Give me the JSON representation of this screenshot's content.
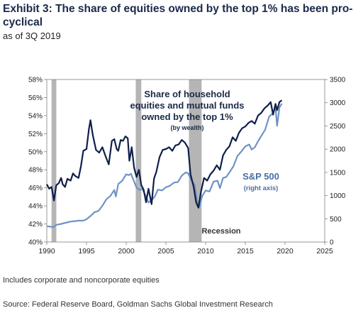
{
  "header": {
    "title": "Exhibit 3: The share of equities owned by the top 1% has been pro-cyclical",
    "subtitle": "as of 3Q 2019"
  },
  "footer": {
    "note": "Includes corporate and noncorporate equities",
    "source": "Source: Federal Reserve Board, Goldman Sachs Global Investment Research"
  },
  "chart_data": {
    "type": "line",
    "title": "",
    "xlabel": "",
    "ylabel": "",
    "xlim": [
      1990,
      2025
    ],
    "ylim": [
      40,
      58
    ],
    "y2lim": [
      0,
      3500
    ],
    "x_ticks": [
      "1990",
      "1995",
      "2000",
      "2005",
      "2010",
      "2015",
      "2020",
      "2025"
    ],
    "y_ticks": [
      "40%",
      "42%",
      "44%",
      "46%",
      "48%",
      "50%",
      "52%",
      "54%",
      "56%",
      "58%"
    ],
    "y2_ticks": [
      "0",
      "500",
      "1000",
      "1500",
      "2000",
      "2500",
      "3000",
      "3500"
    ],
    "annotations": {
      "top1_label_1": "Share of household",
      "top1_label_2": "equities and mutual funds",
      "top1_label_3": "owned by the top 1%",
      "top1_label_4": "(by wealth)",
      "sp_label_1": "S&P 500",
      "sp_label_2": "(right axis)",
      "recession_label": "Recession"
    },
    "recessions": [
      [
        1990.6,
        1991.2
      ],
      [
        2001.2,
        2001.9
      ],
      [
        2007.9,
        2009.5
      ]
    ],
    "colors": {
      "top1": "#0f1f4b",
      "sp500": "#6f93c6",
      "recession": "#b5b5b5",
      "label_dark": "#1b2a4a",
      "label_blue": "#4a6fa5"
    },
    "series": [
      {
        "axis": "left",
        "x": [
          1990.0,
          1990.3,
          1990.6,
          1990.9,
          1991.2,
          1991.5,
          1991.8,
          1992.0,
          1992.3,
          1992.6,
          1993.0,
          1993.3,
          1993.6,
          1994.0,
          1994.3,
          1994.6,
          1995.0,
          1995.3,
          1995.5,
          1995.8,
          1996.2,
          1996.6,
          1997.0,
          1997.4,
          1997.8,
          1998.2,
          1998.5,
          1998.8,
          1999.0,
          1999.3,
          1999.6,
          1999.9,
          2000.2,
          2000.4,
          2000.7,
          2001.0,
          2001.3,
          2001.6,
          2001.9,
          2002.2,
          2002.5,
          2002.8,
          2003.2,
          2003.5,
          2003.8,
          2004.2,
          2004.6,
          2005.0,
          2005.4,
          2005.8,
          2006.2,
          2006.6,
          2007.0,
          2007.4,
          2007.8,
          2008.1,
          2008.5,
          2008.8,
          2009.1,
          2009.4,
          2009.8,
          2010.2,
          2010.6,
          2011.0,
          2011.4,
          2011.8,
          2012.2,
          2012.6,
          2013.0,
          2013.4,
          2013.8,
          2014.2,
          2014.6,
          2015.0,
          2015.4,
          2015.8,
          2016.2,
          2016.6,
          2017.0,
          2017.4,
          2017.8,
          2018.2,
          2018.5,
          2018.8,
          2019.0,
          2019.3,
          2019.6
        ],
        "values": [
          46.4,
          45.9,
          46.1,
          44.6,
          46.3,
          46.5,
          47.1,
          46.4,
          46.1,
          47.0,
          46.8,
          47.6,
          47.3,
          47.1,
          48.4,
          50.1,
          50.3,
          52.5,
          53.5,
          51.8,
          50.2,
          49.9,
          50.5,
          49.5,
          48.6,
          51.2,
          51.4,
          50.3,
          50.1,
          51.3,
          51.2,
          51.7,
          51.5,
          49.0,
          50.5,
          48.2,
          47.2,
          48.0,
          46.3,
          45.8,
          44.4,
          45.9,
          44.2,
          47.0,
          47.8,
          49.4,
          50.2,
          50.3,
          50.5,
          50.1,
          50.7,
          50.8,
          51.3,
          51.0,
          50.4,
          47.5,
          46.1,
          44.4,
          43.8,
          45.5,
          47.1,
          46.8,
          47.5,
          47.9,
          48.5,
          48.0,
          49.6,
          50.2,
          50.6,
          51.6,
          51.2,
          52.1,
          52.6,
          52.8,
          53.2,
          53.4,
          53.1,
          54.0,
          54.3,
          54.8,
          55.1,
          55.5,
          54.1,
          55.3,
          54.6,
          55.5,
          55.7
        ]
      },
      {
        "axis": "right",
        "x": [
          1990.0,
          1990.5,
          1990.8,
          1991.2,
          1991.8,
          1992.5,
          1993.0,
          1993.5,
          1994.0,
          1994.6,
          1995.0,
          1995.5,
          1996.0,
          1996.5,
          1997.0,
          1997.5,
          1998.0,
          1998.5,
          1998.7,
          1999.0,
          1999.5,
          2000.0,
          2000.3,
          2000.6,
          2001.0,
          2001.3,
          2001.7,
          2002.0,
          2002.5,
          2002.8,
          2003.2,
          2003.6,
          2004.0,
          2004.5,
          2005.0,
          2005.5,
          2006.0,
          2006.5,
          2007.0,
          2007.5,
          2007.8,
          2008.2,
          2008.6,
          2008.9,
          2009.2,
          2009.6,
          2010.0,
          2010.5,
          2011.0,
          2011.5,
          2011.8,
          2012.2,
          2012.6,
          2013.0,
          2013.5,
          2014.0,
          2014.5,
          2015.0,
          2015.5,
          2015.8,
          2016.2,
          2016.6,
          2017.0,
          2017.5,
          2018.0,
          2018.5,
          2018.8,
          2019.0,
          2019.3,
          2019.6
        ],
        "values": [
          340,
          330,
          320,
          370,
          390,
          420,
          440,
          450,
          460,
          460,
          490,
          560,
          640,
          670,
          780,
          920,
          990,
          1120,
          980,
          1250,
          1320,
          1460,
          1440,
          1470,
          1300,
          1170,
          1120,
          1150,
          980,
          850,
          900,
          980,
          1130,
          1110,
          1180,
          1210,
          1280,
          1290,
          1430,
          1500,
          1480,
          1330,
          1240,
          900,
          760,
          1000,
          1110,
          1090,
          1300,
          1320,
          1160,
          1380,
          1400,
          1500,
          1630,
          1850,
          1950,
          2060,
          2100,
          1990,
          2040,
          2170,
          2280,
          2420,
          2700,
          2780,
          2900,
          2500,
          2900,
          2980
        ]
      }
    ]
  }
}
